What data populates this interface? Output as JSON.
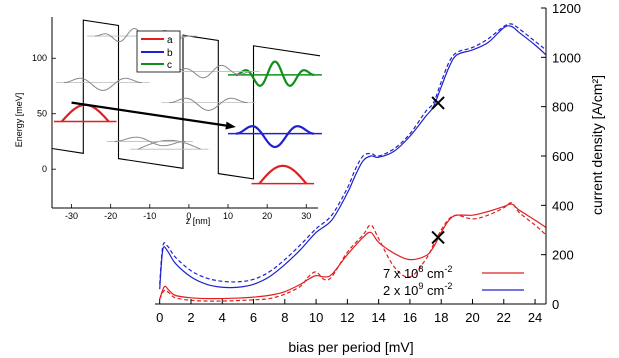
{
  "chart_data": [
    {
      "type": "line",
      "title": "",
      "xlabel": "bias per period [mV]",
      "ylabel": "current density [A/cm²]",
      "xlim": [
        -0.3,
        24.7
      ],
      "ylim": [
        0,
        1200
      ],
      "xticks": [
        0,
        2,
        4,
        6,
        8,
        10,
        12,
        14,
        16,
        18,
        20,
        22,
        24
      ],
      "xtick_labels": [
        "0",
        "2",
        "4",
        "6",
        "8",
        "10",
        "12",
        "14",
        "16",
        "18",
        "20",
        "22",
        "24"
      ],
      "yticks": [
        0,
        200,
        400,
        600,
        800,
        1000,
        1200
      ],
      "ytick_labels": [
        "0",
        "200",
        "400",
        "600",
        "800",
        "1000",
        "1200"
      ],
      "grid": false,
      "legend_position": "lower-right",
      "legend": [
        {
          "prefix": "7 x 10",
          "exp": "8",
          "suffix": " cm",
          "unit_exp": "-2",
          "color": "#e02020"
        },
        {
          "prefix": "2 x 10",
          "exp": "9",
          "suffix": " cm",
          "unit_exp": "-2",
          "color": "#2020d0"
        }
      ],
      "series": [
        {
          "color": "#2020d0",
          "style": "solid",
          "x": [
            0,
            0.2,
            0.5,
            1,
            2,
            3,
            4,
            5,
            6,
            7,
            8,
            9,
            10,
            11,
            12,
            12.5,
            13,
            13.5,
            14,
            15,
            16,
            17,
            17.5,
            18,
            18.5,
            19,
            20,
            21,
            22,
            22.5,
            23,
            24,
            24.7
          ],
          "values": [
            60,
            220,
            215,
            165,
            110,
            80,
            68,
            68,
            80,
            110,
            160,
            220,
            290,
            340,
            450,
            520,
            580,
            600,
            595,
            620,
            680,
            760,
            800,
            880,
            960,
            1010,
            1030,
            1060,
            1120,
            1125,
            1100,
            1050,
            1010
          ]
        },
        {
          "color": "#2020d0",
          "style": "dashed",
          "x": [
            0,
            0.2,
            0.5,
            1,
            2,
            3,
            4,
            5,
            6,
            7,
            8,
            9,
            10,
            11,
            12,
            12.5,
            13,
            13.5,
            14,
            15,
            16,
            17,
            17.5,
            18,
            18.5,
            19,
            20,
            21,
            22,
            22.5,
            23,
            24,
            24.7
          ],
          "values": [
            80,
            235,
            235,
            190,
            135,
            105,
            92,
            90,
            100,
            130,
            180,
            240,
            305,
            360,
            470,
            545,
            600,
            610,
            600,
            630,
            690,
            780,
            815,
            900,
            980,
            1020,
            1040,
            1075,
            1125,
            1135,
            1115,
            1065,
            1030
          ]
        },
        {
          "color": "#e02020",
          "style": "solid",
          "x": [
            0,
            0.3,
            0.6,
            1,
            2,
            3,
            4,
            5,
            6,
            7,
            8,
            9,
            9.5,
            10,
            10.5,
            11,
            12,
            13,
            13.5,
            14,
            15,
            16,
            17,
            17.5,
            18,
            18.5,
            19,
            20,
            21,
            22,
            22.5,
            23,
            24,
            24.7
          ],
          "values": [
            20,
            70,
            55,
            35,
            25,
            22,
            22,
            24,
            28,
            35,
            50,
            80,
            100,
            115,
            110,
            120,
            200,
            270,
            290,
            250,
            205,
            180,
            195,
            230,
            290,
            340,
            360,
            360,
            375,
            395,
            405,
            380,
            340,
            310
          ]
        },
        {
          "color": "#e02020",
          "style": "dashed",
          "x": [
            0,
            0.3,
            0.6,
            1,
            2,
            3,
            4,
            5,
            6,
            7,
            8,
            9,
            9.5,
            10,
            10.5,
            11,
            12,
            13,
            13.5,
            14,
            15,
            16,
            17,
            17.5,
            18,
            18.5,
            19,
            20,
            21,
            22,
            22.5,
            23,
            24,
            24.7
          ],
          "values": [
            20,
            55,
            45,
            25,
            15,
            12,
            12,
            14,
            17,
            22,
            40,
            72,
            110,
            130,
            100,
            110,
            210,
            280,
            320,
            265,
            150,
            110,
            180,
            240,
            300,
            345,
            360,
            345,
            360,
            390,
            410,
            370,
            320,
            280
          ]
        }
      ],
      "markers": [
        {
          "shape": "x",
          "x": 17.8,
          "y": 815
        },
        {
          "shape": "x",
          "x": 17.8,
          "y": 270
        }
      ]
    },
    {
      "type": "line",
      "title": "",
      "xlabel": "z [nm]",
      "ylabel": "Energy [meV]",
      "xlim": [
        -35,
        33
      ],
      "ylim": [
        -35,
        148
      ],
      "xticks": [
        -30,
        -20,
        -10,
        0,
        10,
        20,
        30
      ],
      "xtick_labels": [
        "-30",
        "-20",
        "-10",
        "0",
        "10",
        "20",
        "30"
      ],
      "yticks": [
        0,
        50,
        100
      ],
      "ytick_labels": [
        "0",
        "50",
        "100"
      ],
      "grid": false,
      "legend_position": "top",
      "legend": [
        {
          "label": "a",
          "color": "#e02020"
        },
        {
          "label": "b",
          "color": "#2020d0"
        },
        {
          "label": "c",
          "color": "#10901a"
        }
      ],
      "bias_per_period": 17.8,
      "period_nm": 33.5,
      "potential_offsets": [
        -35,
        -27,
        -18,
        -1.5,
        7.5,
        16.5,
        33.5
      ],
      "potential_heights": [
        0,
        120,
        0,
        120,
        0,
        120,
        0
      ],
      "states": [
        {
          "name": "a",
          "color": "#e02020",
          "bold": true,
          "period": 0,
          "center": -26.5,
          "level": 43,
          "amp": 15,
          "width": 12,
          "lobes": 1
        },
        {
          "name": "a",
          "color": "#e02020",
          "bold": true,
          "period": 2,
          "center": 24,
          "level": -13,
          "amp": 16,
          "width": 12,
          "lobes": 1
        },
        {
          "name": "b",
          "color": "#2020d0",
          "bold": true,
          "period": 2,
          "center": 22,
          "level": 32,
          "amp": 12,
          "width": 20,
          "lobes": 3
        },
        {
          "name": "c",
          "color": "#10901a",
          "bold": true,
          "period": 2,
          "center": 22,
          "level": 85,
          "amp": 12,
          "width": 20,
          "lobes": 5
        },
        {
          "name": "",
          "color": "#888888",
          "bold": false,
          "period": 0,
          "center": -12,
          "level": 120,
          "amp": 7,
          "width": 24,
          "lobes": 6
        },
        {
          "name": "",
          "color": "#888888",
          "bold": false,
          "period": 1,
          "center": 6,
          "level": 88,
          "amp": 6,
          "width": 20,
          "lobes": 4
        },
        {
          "name": "",
          "color": "#888888",
          "bold": false,
          "period": 1,
          "center": 5,
          "level": 60,
          "amp": 7,
          "width": 20,
          "lobes": 3
        },
        {
          "name": "",
          "color": "#888888",
          "bold": false,
          "period": 0,
          "center": -22,
          "level": 78,
          "amp": 7,
          "width": 20,
          "lobes": 3
        },
        {
          "name": "",
          "color": "#888888",
          "bold": false,
          "period": 1,
          "center": -5,
          "level": 18,
          "amp": 8,
          "width": 16,
          "lobes": 1
        },
        {
          "name": "",
          "color": "#888888",
          "bold": false,
          "period": 0,
          "center": -10,
          "level": 25,
          "amp": 5,
          "width": 18,
          "lobes": 2
        }
      ],
      "arrow": {
        "x1": -30,
        "y1": 60,
        "x2": 12,
        "y2": 38
      }
    }
  ]
}
